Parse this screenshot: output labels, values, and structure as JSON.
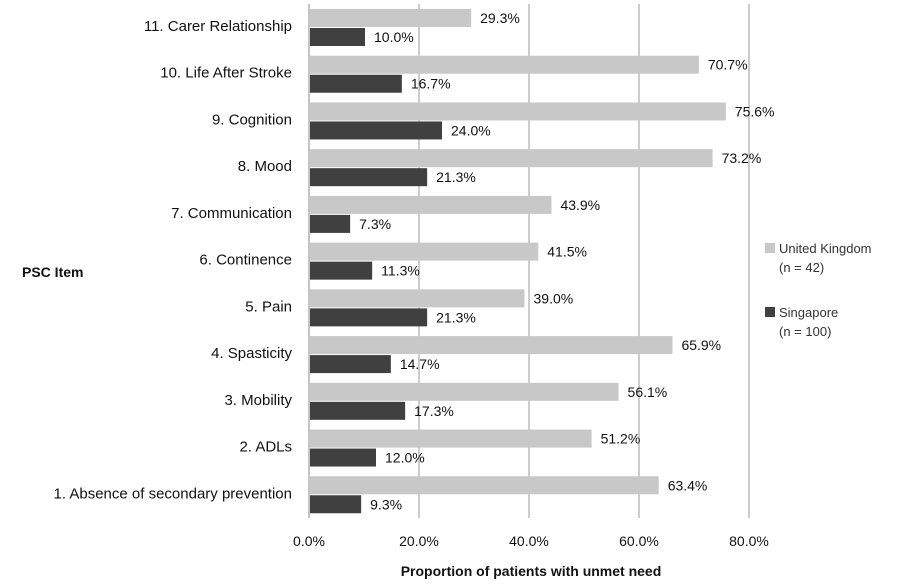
{
  "chart_data": {
    "type": "bar",
    "orientation": "horizontal",
    "categories": [
      "11. Carer Relationship",
      "10. Life After Stroke",
      "9. Cognition",
      "8. Mood",
      "7. Communication",
      "6. Continence",
      "5. Pain",
      "4. Spasticity",
      "3. Mobility",
      "2. ADLs",
      "1. Absence of secondary prevention"
    ],
    "series": [
      {
        "name": "United Kingdom",
        "n_label": "(n = 42)",
        "color": "#c8c8c8",
        "values": [
          29.3,
          70.7,
          75.6,
          73.2,
          43.9,
          41.5,
          39.0,
          65.9,
          56.1,
          51.2,
          63.4
        ],
        "labels": [
          "29.3%",
          "70.7%",
          "75.6%",
          "73.2%",
          "43.9%",
          "41.5%",
          "39.0%",
          "65.9%",
          "56.1%",
          "51.2%",
          "63.4%"
        ]
      },
      {
        "name": "Singapore",
        "n_label": "(n = 100)",
        "color": "#404040",
        "values": [
          10.0,
          16.7,
          24.0,
          21.3,
          7.3,
          11.3,
          21.3,
          14.7,
          17.3,
          12.0,
          9.3
        ],
        "labels": [
          "10.0%",
          "16.7%",
          "24.0%",
          "21.3%",
          "7.3%",
          "11.3%",
          "21.3%",
          "14.7%",
          "17.3%",
          "12.0%",
          "9.3%"
        ]
      }
    ],
    "xlim": [
      0,
      80
    ],
    "xticks": [
      0,
      20,
      40,
      60,
      80
    ],
    "xtick_labels": [
      "0.0%",
      "20.0%",
      "40.0%",
      "60.0%",
      "80.0%"
    ],
    "xlabel": "Proportion of patients with unmet need",
    "ylabel": "PSC Item",
    "grid": "vertical",
    "legend_position": "right"
  }
}
